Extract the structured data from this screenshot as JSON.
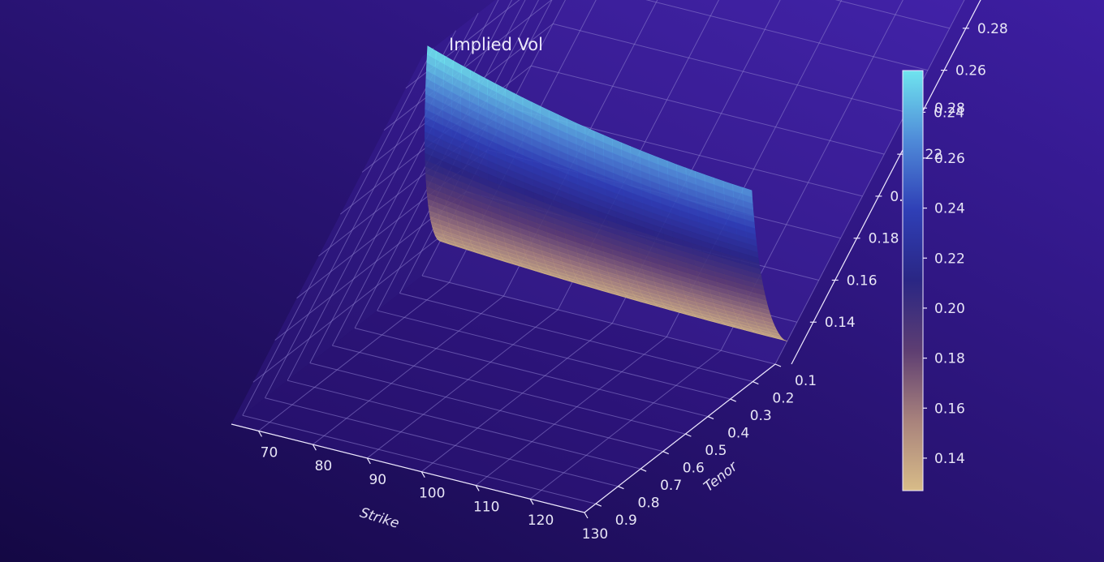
{
  "chart_data": {
    "type": "surface",
    "title": "Implied Vol",
    "xlabel": "Strike",
    "ylabel": "Tenor",
    "zlabel": "",
    "x_range": [
      65,
      130
    ],
    "y_range": [
      0.1,
      0.95
    ],
    "z_range": [
      0.12,
      0.295
    ],
    "x_ticks": [
      70,
      80,
      90,
      100,
      110,
      120,
      130
    ],
    "y_ticks": [
      0.1,
      0.2,
      0.3,
      0.4,
      0.5,
      0.6,
      0.7,
      0.8,
      0.9
    ],
    "z_ticks": [
      0.14,
      0.16,
      0.18,
      0.2,
      0.22,
      0.24,
      0.26,
      0.28
    ],
    "surface": {
      "strike": [
        65,
        75,
        85,
        95,
        105,
        115,
        125,
        130
      ],
      "tenor": [
        0.1,
        0.2,
        0.3,
        0.4,
        0.5,
        0.6,
        0.7,
        0.8,
        0.9,
        0.95
      ],
      "corner_values": {
        "low_strike_short_tenor": 0.135,
        "high_strike_short_tenor": 0.13,
        "low_strike_long_tenor": 0.295,
        "high_strike_long_tenor": 0.27
      }
    },
    "colorbar": {
      "range": [
        0.127,
        0.295
      ],
      "ticks": [
        0.14,
        0.16,
        0.18,
        0.2,
        0.22,
        0.24,
        0.26,
        0.28
      ],
      "colors": [
        "#d8bc88",
        "#a8827c",
        "#5e3e72",
        "#2a2684",
        "#2f3fb6",
        "#4f8ad8",
        "#6fe4ef"
      ]
    },
    "grid": true,
    "legend": "none"
  },
  "colors": {
    "background_top": "#3a1e9c",
    "background_bottom": "#160a4a",
    "text": "#e8e6f6",
    "grid": "#8e7fd0"
  }
}
